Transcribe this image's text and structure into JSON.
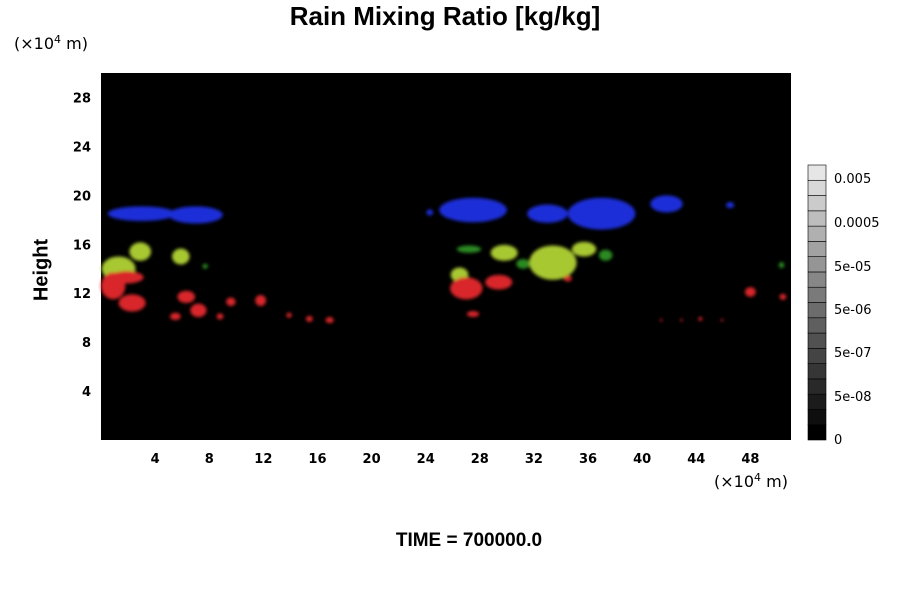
{
  "chart_data": {
    "type": "heatmap",
    "title": "Rain Mixing Ratio [kg/kg]",
    "ylabel": "Height",
    "xunit": {
      "prefix": "(×10",
      "exp": "4",
      "suffix": " m)"
    },
    "yunit": {
      "prefix": "(×10",
      "exp": "4",
      "suffix": " m)"
    },
    "xlim": [
      0,
      51
    ],
    "ylim": [
      0,
      30
    ],
    "xticks": [
      4,
      8,
      12,
      16,
      20,
      24,
      28,
      32,
      36,
      40,
      44,
      48
    ],
    "yticks": [
      4,
      8,
      12,
      16,
      20,
      24,
      28
    ],
    "background": "#000000",
    "colorbar": {
      "labels": [
        "0.005",
        "0.0005",
        "5e-05",
        "5e-06",
        "5e-07",
        "5e-08",
        "0"
      ]
    },
    "regions": [
      {
        "color": "#1f2fd8",
        "cells": [
          [
            3,
            18.5,
            5,
            1.2
          ],
          [
            7,
            18.4,
            4,
            1.4
          ],
          [
            27.5,
            18.8,
            5,
            2.0
          ],
          [
            33,
            18.5,
            3,
            1.5
          ],
          [
            37,
            18.5,
            5,
            2.6
          ],
          [
            41.8,
            19.3,
            2.4,
            1.4
          ],
          [
            24.3,
            18.6,
            0.5,
            0.5
          ],
          [
            46.5,
            19.2,
            0.6,
            0.5
          ]
        ]
      },
      {
        "color": "#a8c832",
        "cells": [
          [
            1.3,
            14.0,
            2.5,
            2.0
          ],
          [
            2.9,
            15.4,
            1.6,
            1.5
          ],
          [
            5.9,
            15.0,
            1.3,
            1.3
          ],
          [
            26.5,
            13.5,
            1.3,
            1.2
          ],
          [
            29.8,
            15.3,
            2.0,
            1.3
          ],
          [
            33.4,
            14.5,
            3.5,
            2.8
          ],
          [
            35.7,
            15.6,
            1.8,
            1.2
          ]
        ]
      },
      {
        "color": "#2a8a22",
        "cells": [
          [
            27.2,
            15.6,
            1.8,
            0.6
          ],
          [
            31.2,
            14.4,
            1.0,
            0.8
          ],
          [
            37.3,
            15.1,
            1.0,
            0.9
          ],
          [
            50.3,
            14.3,
            0.4,
            0.5
          ],
          [
            7.7,
            14.2,
            0.4,
            0.4
          ]
        ]
      },
      {
        "color": "#d8262a",
        "cells": [
          [
            0.9,
            12.6,
            1.8,
            2.2
          ],
          [
            2.3,
            11.2,
            2.0,
            1.4
          ],
          [
            1.9,
            13.3,
            2.5,
            1.0
          ],
          [
            6.3,
            11.7,
            1.3,
            1.0
          ],
          [
            7.2,
            10.6,
            1.2,
            1.1
          ],
          [
            9.6,
            11.3,
            0.7,
            0.7
          ],
          [
            11.8,
            11.4,
            0.8,
            0.9
          ],
          [
            5.5,
            10.1,
            0.8,
            0.6
          ],
          [
            8.8,
            10.1,
            0.5,
            0.5
          ],
          [
            13.9,
            10.2,
            0.4,
            0.4
          ],
          [
            15.4,
            9.9,
            0.5,
            0.5
          ],
          [
            16.9,
            9.8,
            0.6,
            0.5
          ],
          [
            27.0,
            12.4,
            2.4,
            1.8
          ],
          [
            29.4,
            12.9,
            2.0,
            1.2
          ],
          [
            27.5,
            10.3,
            0.9,
            0.5
          ],
          [
            34.5,
            13.2,
            0.6,
            0.5
          ],
          [
            48.0,
            12.1,
            0.8,
            0.8
          ],
          [
            50.4,
            11.7,
            0.5,
            0.5
          ],
          [
            41.4,
            9.8,
            0.2,
            0.2
          ],
          [
            42.9,
            9.8,
            0.2,
            0.2
          ],
          [
            44.3,
            9.9,
            0.3,
            0.3
          ],
          [
            45.9,
            9.8,
            0.2,
            0.2
          ]
        ]
      }
    ]
  },
  "footer": {
    "time_label": "TIME = 700000.0"
  }
}
